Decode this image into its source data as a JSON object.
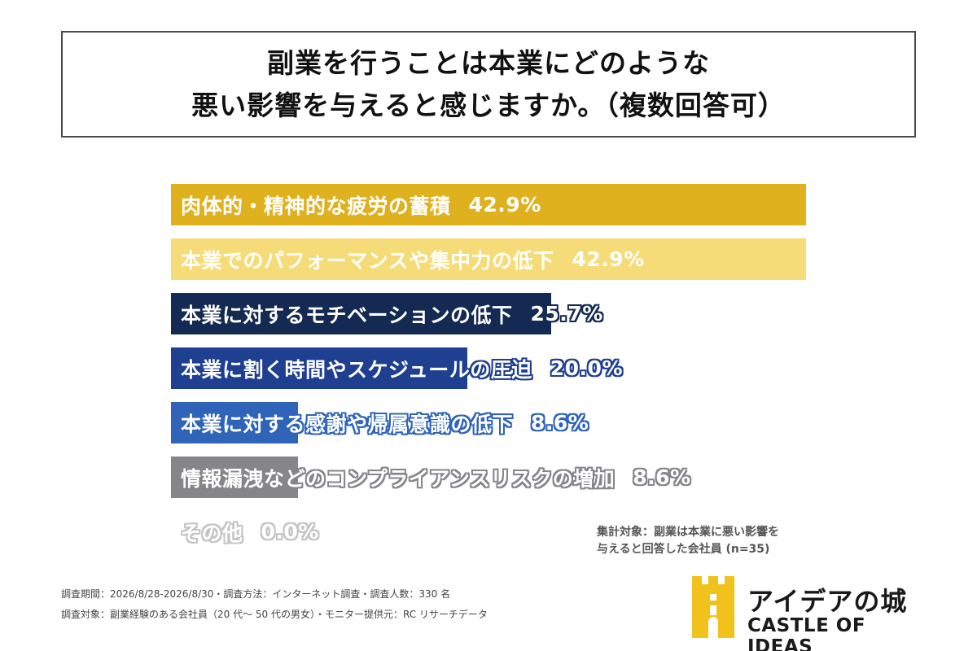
{
  "title": {
    "line1": "副業を行うことは本業にどのような",
    "line2": "悪い影響を与えると感じますか。（複数回答可）"
  },
  "chart_data": {
    "type": "bar",
    "orientation": "horizontal",
    "categories": [
      "肉体的・精神的な疲労の蓄積",
      "本業でのパフォーマンスや集中力の低下",
      "本業に対するモチベーションの低下",
      "本業に割く時間やスケジュールの圧迫",
      "本業に対する感謝や帰属意識の低下",
      "情報漏洩などのコンプライアンスリスクの増加",
      "その他"
    ],
    "values": [
      42.9,
      42.9,
      25.7,
      20.0,
      8.6,
      8.6,
      0.0
    ],
    "value_labels": [
      "42.9%",
      "42.9%",
      "25.7%",
      "20.0%",
      "8.6%",
      "8.6%",
      "0.0%"
    ],
    "colors": [
      "#e0b11f",
      "#f6dc78",
      "#142a52",
      "#1f3f91",
      "#2f64b8",
      "#86858a",
      "#c4c4c4"
    ],
    "xlim": [
      0,
      42.9
    ],
    "grid": false,
    "legend": "none"
  },
  "note": {
    "line1": "集計対象：副業は本業に悪い影響を",
    "line2": "与えると回答した会社員 (n=35)"
  },
  "footer": {
    "line1": "調査期間：2026/8/28-2026/8/30・調査方法：インターネット調査・調査人数：330 名",
    "line2": "調査対象：副業経験のある会社員（20 代〜 50 代の男女）・モニター提供元：RC リサーチデータ"
  },
  "logo": {
    "jp": "アイデアの城",
    "en": "CASTLE OF IDEAS",
    "color": "#f1c21b",
    "icon": "castle-icon"
  }
}
